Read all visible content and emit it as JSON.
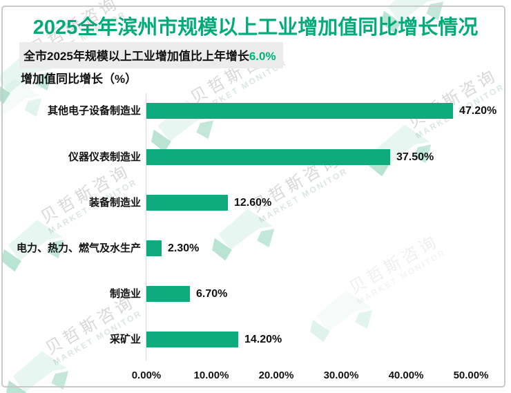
{
  "title": "2025全年滨州市规模以上工业增加值同比增长情况",
  "subtitle": {
    "prefix": "全市2025年规模以上工业增加值比上年增长",
    "highlight": "6.0%"
  },
  "axis_title": "增加值同比增长（%）",
  "watermark": {
    "cn": "贝哲斯咨询",
    "en": "MARKET MONITOR"
  },
  "colors": {
    "title_green": "#00ab78",
    "bar_green": "#0eab7c",
    "highlight_green": "#00b377",
    "subtitle_bg": "#ececec",
    "axis_line": "#d9d9d9",
    "card_border": "#c9c9c9",
    "watermark_text": "#b9b9b9",
    "watermark_en": "#bcd2c7",
    "watermark_logo": "#17a36e"
  },
  "chart_data": {
    "type": "bar",
    "orientation": "horizontal",
    "title": "2025全年滨州市规模以上工业增加值同比增长情况",
    "xlabel": "增加值同比增长（%）",
    "categories": [
      "其他电子设备制造业",
      "仪器仪表制造业",
      "装备制造业",
      "电力、热力、燃气及水生产",
      "制造业",
      "采矿业"
    ],
    "values": [
      47.2,
      37.5,
      12.6,
      2.3,
      6.7,
      14.2
    ],
    "value_labels": [
      "47.20%",
      "37.50%",
      "12.60%",
      "2.30%",
      "6.70%",
      "14.20%"
    ],
    "x_ticks": [
      "0.00%",
      "10.00%",
      "20.00%",
      "30.00%",
      "40.00%",
      "50.00%"
    ],
    "x_tick_values": [
      0,
      10,
      20,
      30,
      40,
      50
    ],
    "xlim": [
      0,
      50
    ],
    "grid": false,
    "legend": "none",
    "bar_color": "#0eab7c"
  }
}
